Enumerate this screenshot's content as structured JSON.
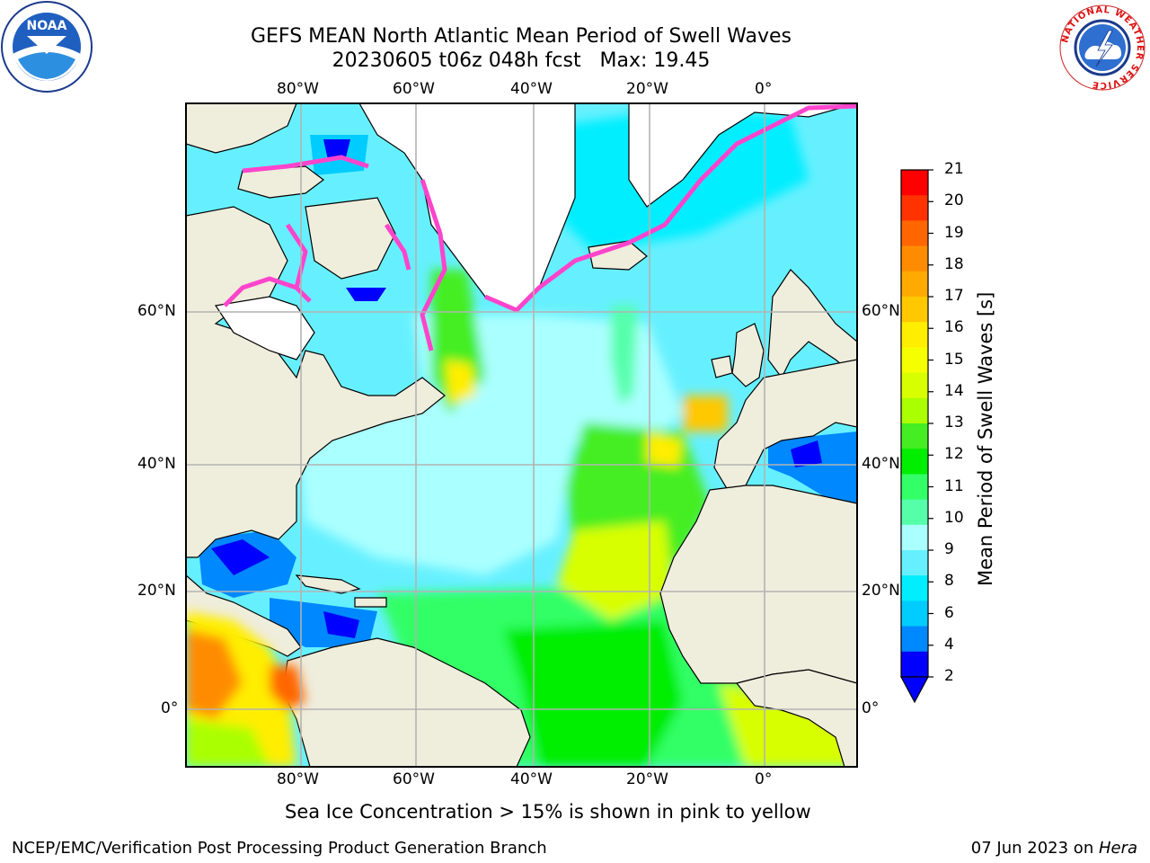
{
  "title": {
    "line1": "GEFS MEAN North Atlantic Mean Period of Swell Waves",
    "line2": "20230605 t06z 048h fcst   Max: 19.45"
  },
  "map": {
    "lon_labels_top": [
      "80°W",
      "60°W",
      "40°W",
      "20°W",
      "0°"
    ],
    "lon_labels_bottom": [
      "80°W",
      "60°W",
      "40°W",
      "20°W",
      "0°"
    ],
    "lat_labels_left": [
      "60°N",
      "40°N",
      "20°N",
      "0°"
    ],
    "lat_labels_right": [
      "60°N",
      "40°N",
      "20°N",
      "0°"
    ],
    "colors": {
      "land": "#efeddc",
      "ice_sheet": "#ffffff",
      "coast": "#000000",
      "grid": "#b3b3b3"
    }
  },
  "colorbar": {
    "label": "Mean Period of Swell Waves [s]",
    "ticks": [
      "21",
      "20",
      "19",
      "18",
      "17",
      "16",
      "15",
      "14",
      "13",
      "12",
      "11",
      "10",
      "9",
      "8",
      "6",
      "4",
      "2"
    ],
    "bins_top_to_bottom": [
      "#ff0000",
      "#ff3300",
      "#ff6600",
      "#ff8c00",
      "#ffaa00",
      "#ffc800",
      "#ffee00",
      "#f5ff00",
      "#d8ff00",
      "#aaff00",
      "#44ee22",
      "#00ee00",
      "#33ff66",
      "#55ffaa",
      "#aaffff",
      "#66f0ff",
      "#00eeff",
      "#00ccff",
      "#0088ff",
      "#0000ff"
    ]
  },
  "footnote": "Sea Ice Concentration > 15% is shown in pink to yellow",
  "footer": {
    "left": "NCEP/EMC/Verification Post Processing Product Generation Branch",
    "right_date": "07 Jun 2023 on ",
    "right_machine": "Hera"
  },
  "logos": {
    "noaa_text": "NOAA",
    "nws_ring_text": "NATIONAL WEATHER SERVICE"
  }
}
